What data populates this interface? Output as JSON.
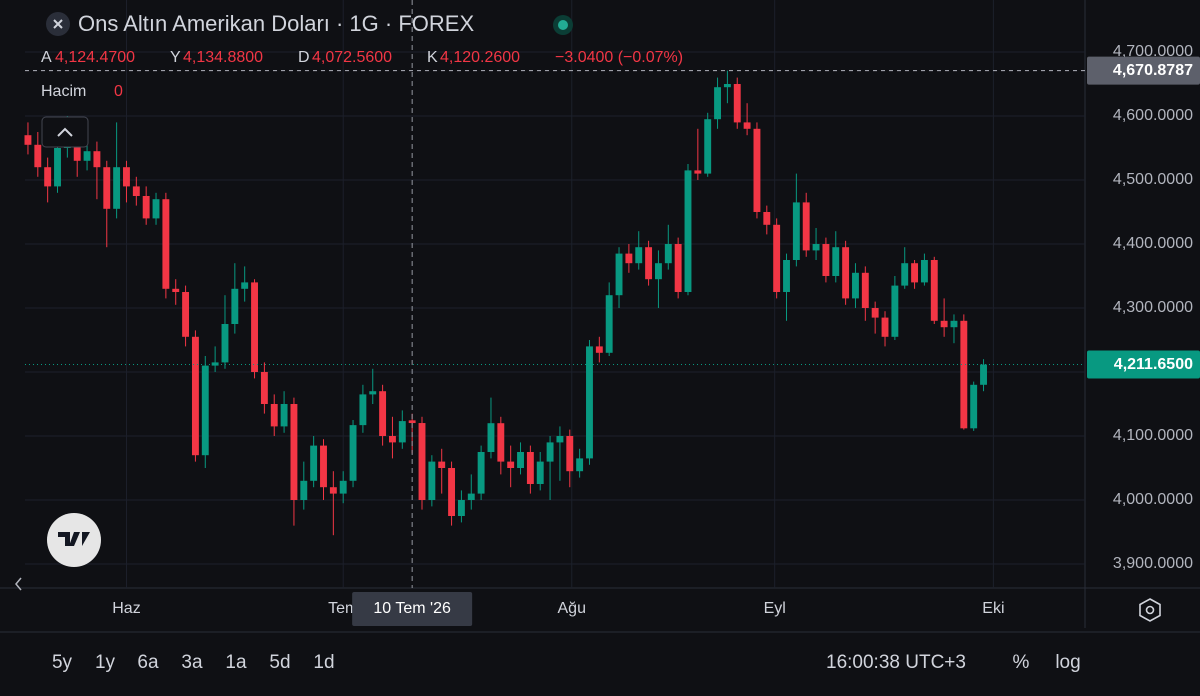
{
  "chart_data": {
    "type": "candlestick",
    "title": "Ons Altın Amerikan Doları · 1G · FOREX",
    "legend": {
      "open_key": "A",
      "open_label": "4,124.4700",
      "high_key": "Y",
      "high_label": "4,134.8800",
      "low_key": "D",
      "low_label": "4,072.5600",
      "close_key": "K",
      "close_label": "4,120.2600",
      "change_label": "−3.0400 (−0.07%)",
      "volume_key": "Hacim",
      "volume_label": "0"
    },
    "up_color": "#089981",
    "down_color": "#f23645",
    "open": [
      4570,
      4555,
      4520,
      4490,
      4550,
      4555,
      4530,
      4545,
      4520,
      4455,
      4520,
      4490,
      4475,
      4440,
      4470,
      4330,
      4325,
      4255,
      4070,
      4210,
      4215,
      4275,
      4330,
      4340,
      4200,
      4150,
      4115,
      4150,
      4000,
      4030,
      4085,
      4020,
      4010,
      4030,
      4117,
      4165,
      4170,
      4100,
      4090,
      4124.47,
      4120.26,
      4000,
      4060,
      4050,
      3975,
      4000,
      4010,
      4075,
      4120,
      4060,
      4050,
      4075,
      4025,
      4060,
      4090,
      4100,
      4045,
      4065,
      4240,
      4230,
      4320,
      4385,
      4370,
      4395,
      4345,
      4370,
      4400,
      4325,
      4515,
      4510,
      4595,
      4645,
      4650,
      4590,
      4580,
      4450,
      4430,
      4325,
      4375,
      4465,
      4390,
      4400,
      4350,
      4395,
      4315,
      4355,
      4300,
      4285,
      4255,
      4335,
      4370,
      4340,
      4375,
      4280,
      4270,
      4280,
      4112,
      4180
    ],
    "high": [
      4590,
      4575,
      4535,
      4565,
      4600,
      4570,
      4560,
      4560,
      4530,
      4590,
      4530,
      4505,
      4490,
      4480,
      4480,
      4345,
      4335,
      4265,
      4225,
      4240,
      4320,
      4370,
      4365,
      4345,
      4215,
      4165,
      4170,
      4160,
      4060,
      4100,
      4095,
      4045,
      4045,
      4125,
      4180,
      4205,
      4180,
      4130,
      4140,
      4134.88,
      4130,
      4070,
      4080,
      4060,
      4015,
      4040,
      4085,
      4160,
      4130,
      4085,
      4090,
      4085,
      4075,
      4100,
      4115,
      4110,
      4080,
      4250,
      4255,
      4340,
      4395,
      4400,
      4420,
      4405,
      4390,
      4430,
      4410,
      4525,
      4580,
      4605,
      4660,
      4670.8787,
      4660,
      4620,
      4590,
      4460,
      4440,
      4385,
      4510,
      4480,
      4425,
      4410,
      4420,
      4405,
      4370,
      4365,
      4310,
      4295,
      4350,
      4395,
      4375,
      4385,
      4380,
      4315,
      4290,
      4290,
      4185,
      4220
    ],
    "low": [
      4540,
      4505,
      4465,
      4480,
      4535,
      4505,
      4515,
      4470,
      4395,
      4440,
      4465,
      4460,
      4430,
      4430,
      4315,
      4305,
      4240,
      4060,
      4050,
      4200,
      4205,
      4260,
      4310,
      4190,
      4135,
      4100,
      4105,
      3960,
      3985,
      4020,
      4000,
      3945,
      3995,
      4020,
      4105,
      4150,
      4085,
      4065,
      4080,
      4072.56,
      3985,
      3990,
      4010,
      3960,
      3965,
      3985,
      4000,
      4065,
      4040,
      4020,
      4040,
      4010,
      4015,
      4000,
      4030,
      4020,
      4035,
      4055,
      4215,
      4225,
      4300,
      4355,
      4360,
      4335,
      4300,
      4360,
      4315,
      4320,
      4500,
      4505,
      4580,
      4620,
      4580,
      4570,
      4440,
      4415,
      4315,
      4280,
      4365,
      4380,
      4375,
      4340,
      4340,
      4305,
      4300,
      4280,
      4260,
      4240,
      4250,
      4330,
      4330,
      4335,
      4275,
      4255,
      4245,
      4110,
      4108,
      4170
    ],
    "close": [
      4555,
      4520,
      4490,
      4550,
      4555,
      4530,
      4545,
      4520,
      4455,
      4520,
      4490,
      4475,
      4440,
      4470,
      4330,
      4325,
      4255,
      4070,
      4210,
      4215,
      4275,
      4330,
      4340,
      4200,
      4150,
      4115,
      4150,
      4000,
      4030,
      4085,
      4020,
      4010,
      4030,
      4117,
      4165,
      4170,
      4100,
      4090,
      4123.3,
      4120.26,
      4000,
      4060,
      4050,
      3975,
      4000,
      4010,
      4075,
      4120,
      4060,
      4050,
      4075,
      4025,
      4060,
      4090,
      4100,
      4045,
      4065,
      4240,
      4230,
      4320,
      4385,
      4370,
      4395,
      4345,
      4370,
      4400,
      4325,
      4515,
      4510,
      4595,
      4645,
      4650,
      4590,
      4580,
      4450,
      4430,
      4325,
      4375,
      4465,
      4390,
      4400,
      4350,
      4395,
      4315,
      4355,
      4300,
      4285,
      4255,
      4335,
      4370,
      4340,
      4375,
      4280,
      4270,
      4280,
      4112,
      4180,
      4211.65
    ],
    "ylim": [
      3862.5,
      4718.75
    ],
    "yticks": [
      {
        "value": 3900,
        "label": "3,900.0000"
      },
      {
        "value": 4000,
        "label": "4,000.0000"
      },
      {
        "value": 4100,
        "label": "4,100.0000"
      },
      {
        "value": 4200,
        "label": "4,200.0000"
      },
      {
        "value": 4300,
        "label": "4,300.0000"
      },
      {
        "value": 4400,
        "label": "4,400.0000"
      },
      {
        "value": 4500,
        "label": "4,500.0000"
      },
      {
        "value": 4600,
        "label": "4,600.0000"
      },
      {
        "value": 4700,
        "label": "4,700.0000"
      }
    ],
    "xlim": [
      -0.3,
      107.3
    ],
    "xticks": [
      {
        "value": 10,
        "label": "Haz"
      },
      {
        "value": 32,
        "label": "Tem"
      },
      {
        "value": 55.2,
        "label": "Ağu"
      },
      {
        "value": 75.8,
        "label": "Eyl"
      },
      {
        "value": 98,
        "label": "Eki"
      }
    ],
    "grid": true,
    "last_price": {
      "value": 4211.65,
      "label": "4,211.6500"
    },
    "high_line": {
      "value": 4670.8787,
      "label": "4,670.8787"
    },
    "crosshair": {
      "index": 39,
      "label": "10 Tem '26"
    }
  },
  "toolbar": {
    "ranges": [
      "5y",
      "1y",
      "6a",
      "3a",
      "1a",
      "5d",
      "1d"
    ],
    "clock": "16:00:38 UTC+3",
    "percent": "%",
    "log": "log"
  }
}
